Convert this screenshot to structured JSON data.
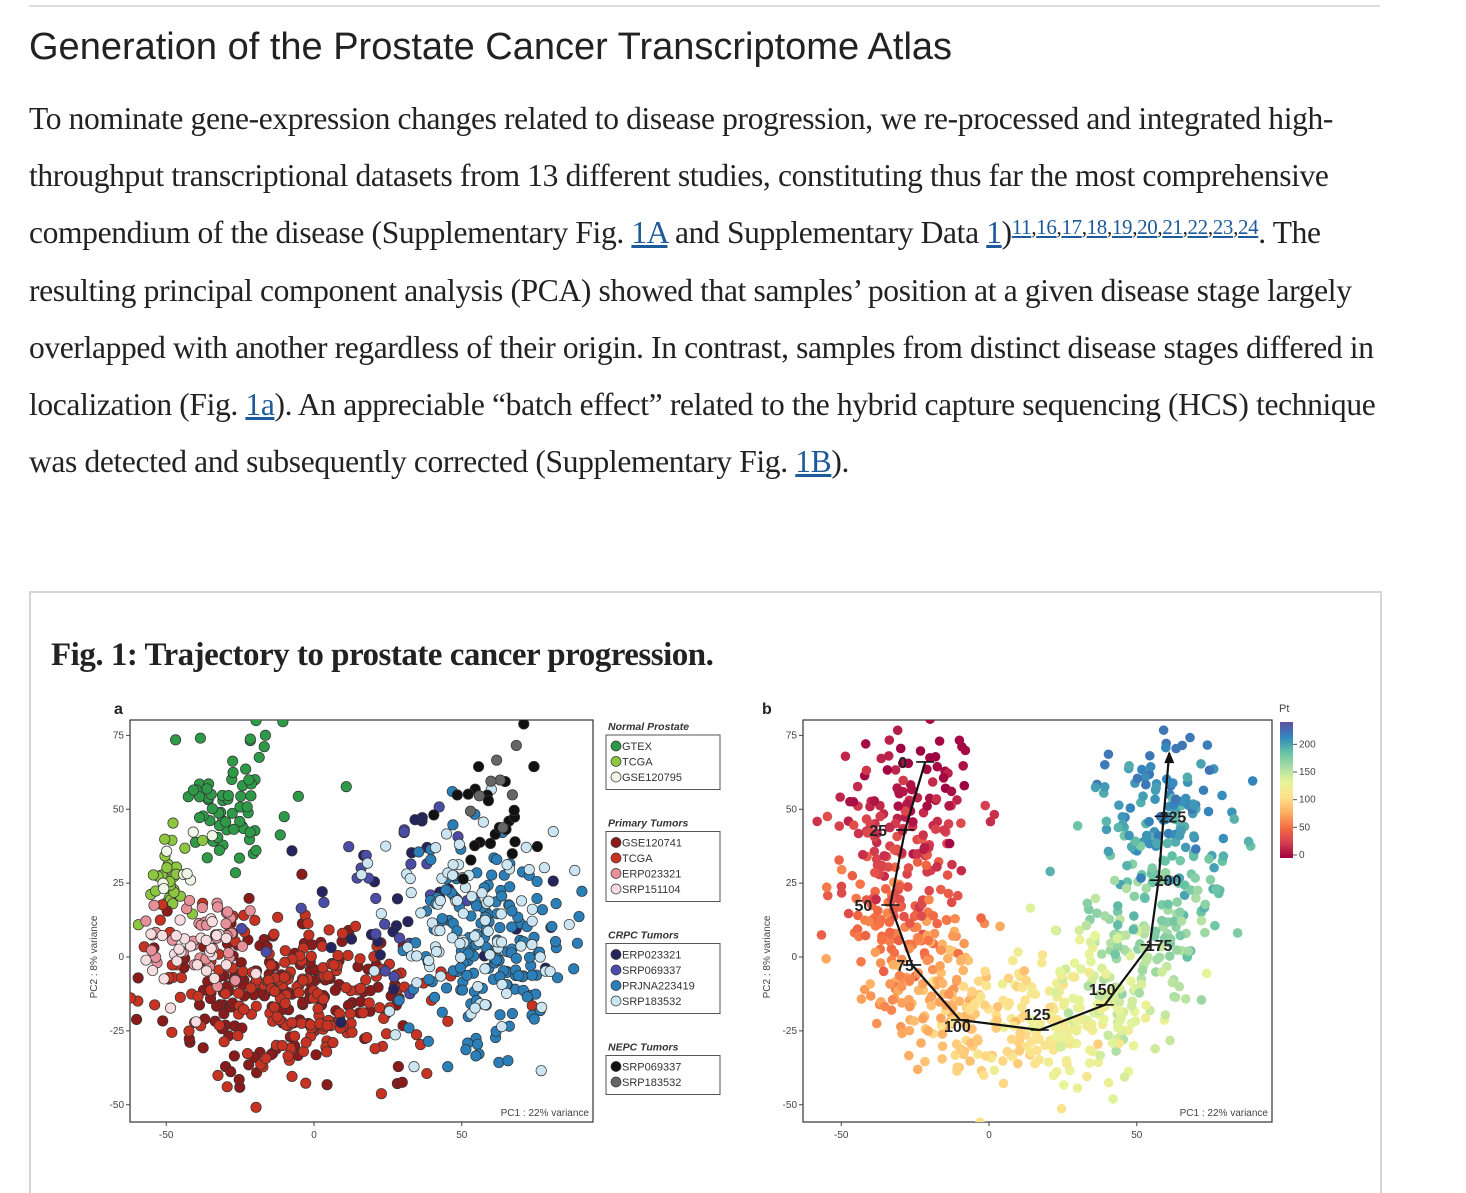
{
  "section": {
    "title": "Generation of the Prostate Cancer Transcriptome Atlas"
  },
  "paragraph": {
    "s1": "To nominate gene-expression changes related to disease progression, we re-processed and integrated high-throughput transcriptional datasets from 13 different studies, constituting thus far the most comprehensive compendium of the disease (Supplementary Fig. ",
    "l1": "1A",
    "s2": " and Supplementary Data ",
    "l2": "1",
    "s3": ")",
    "refs": [
      "11",
      "16",
      "17",
      "18",
      "19",
      "20",
      "21",
      "22",
      "23",
      "24"
    ],
    "s4": ". The resulting principal component analysis (PCA) showed that samples’ position at a given disease stage largely overlapped with another regardless of their origin. In contrast, samples from distinct disease stages differed in localization (Fig. ",
    "l3": "1a",
    "s5": "). An appreciable “batch effect” related to the hybrid capture sequencing (HCS) technique was detected and subsequently corrected (Supplementary Fig. ",
    "l4": "1B",
    "s6": ")."
  },
  "figure": {
    "title": "Fig. 1: Trajectory to prostate cancer progression."
  },
  "chart_data": [
    {
      "type": "scatter",
      "panel": "a",
      "xlabel": "PC1 : 22% variance",
      "ylabel": "PC2 : 8% variance",
      "xticks": [
        -50,
        0,
        50
      ],
      "yticks": [
        75,
        50,
        25,
        0,
        -25,
        -50
      ],
      "xlim": [
        -63,
        95
      ],
      "ylim": [
        -56,
        80
      ],
      "legend_groups": [
        {
          "title": "Normal Prostate",
          "entries": [
            {
              "name": "GTEX",
              "color": "#2e9a48",
              "center": [
                -28,
                53
              ],
              "spread": [
                10,
                12
              ],
              "n": 70
            },
            {
              "name": "TCGA",
              "color": "#8dc63f",
              "center": [
                -50,
                26
              ],
              "spread": [
                5,
                10
              ],
              "n": 30
            },
            {
              "name": "GSE120795",
              "color": "#eef6e6",
              "center": [
                -46,
                30
              ],
              "spread": [
                6,
                6
              ],
              "n": 8
            }
          ]
        },
        {
          "title": "Primary Tumors",
          "entries": [
            {
              "name": "GSE120741",
              "color": "#8b1a1a",
              "center": [
                -10,
                -12
              ],
              "spread": [
                22,
                13
              ],
              "n": 160
            },
            {
              "name": "TCGA",
              "color": "#c83222",
              "center": [
                -5,
                -14
              ],
              "spread": [
                25,
                14
              ],
              "n": 200
            },
            {
              "name": "ERP023321",
              "color": "#e8909a",
              "center": [
                -40,
                5
              ],
              "spread": [
                10,
                9
              ],
              "n": 40
            },
            {
              "name": "SRP151104",
              "color": "#f7dde0",
              "center": [
                -42,
                2
              ],
              "spread": [
                10,
                10
              ],
              "n": 30
            }
          ]
        },
        {
          "title": "CRPC Tumors",
          "entries": [
            {
              "name": "ERP023321",
              "color": "#25245e",
              "center": [
                35,
                25
              ],
              "spread": [
                20,
                18
              ],
              "n": 30
            },
            {
              "name": "SRP069337",
              "color": "#4b4ba8",
              "center": [
                25,
                15
              ],
              "spread": [
                20,
                18
              ],
              "n": 25
            },
            {
              "name": "PRJNA223419",
              "color": "#2b7fb8",
              "center": [
                58,
                5
              ],
              "spread": [
                12,
                18
              ],
              "n": 170
            },
            {
              "name": "SRP183532",
              "color": "#cbe6f2",
              "center": [
                52,
                10
              ],
              "spread": [
                16,
                18
              ],
              "n": 90
            }
          ]
        },
        {
          "title": "NEPC Tumors",
          "entries": [
            {
              "name": "SRP069337",
              "color": "#111111",
              "center": [
                63,
                50
              ],
              "spread": [
                10,
                10
              ],
              "n": 25
            },
            {
              "name": "SRP183532",
              "color": "#666666",
              "center": [
                60,
                55
              ],
              "spread": [
                8,
                8
              ],
              "n": 8
            }
          ]
        }
      ]
    },
    {
      "type": "scatter",
      "panel": "b",
      "xlabel": "PC1 : 22% variance",
      "ylabel": "PC2 : 8% variance",
      "xticks": [
        -50,
        0,
        50
      ],
      "yticks": [
        75,
        50,
        25,
        0,
        -25,
        -50
      ],
      "xlim": [
        -63,
        95
      ],
      "ylim": [
        -56,
        80
      ],
      "colorbar": {
        "title": "Pt",
        "ticks": [
          0,
          50,
          100,
          150,
          200
        ],
        "range": [
          0,
          235
        ],
        "colors": [
          "#9e0142",
          "#d53e4f",
          "#f46d43",
          "#fdae61",
          "#fee08b",
          "#e6f598",
          "#abdda4",
          "#66c2a5",
          "#3288bd",
          "#5e4fa2"
        ]
      },
      "trajectory": [
        {
          "pt": "0",
          "x": -21.6,
          "y": 66
        },
        {
          "pt": "25",
          "x": -28.4,
          "y": 43
        },
        {
          "pt": "50",
          "x": -33.4,
          "y": 17.6
        },
        {
          "pt": "75",
          "x": -26,
          "y": -2.7
        },
        {
          "pt": "100",
          "x": -9.8,
          "y": -21.3
        },
        {
          "pt": "125",
          "x": 17.2,
          "y": -24.7
        },
        {
          "pt": "150",
          "x": 39.2,
          "y": -16.2
        },
        {
          "pt": "175",
          "x": 54.4,
          "y": 4.1
        },
        {
          "pt": "200",
          "x": 57.4,
          "y": 26
        },
        {
          "pt": "225",
          "x": 59.1,
          "y": 47.6
        },
        {
          "pt": "",
          "x": 61,
          "y": 69
        }
      ]
    }
  ]
}
